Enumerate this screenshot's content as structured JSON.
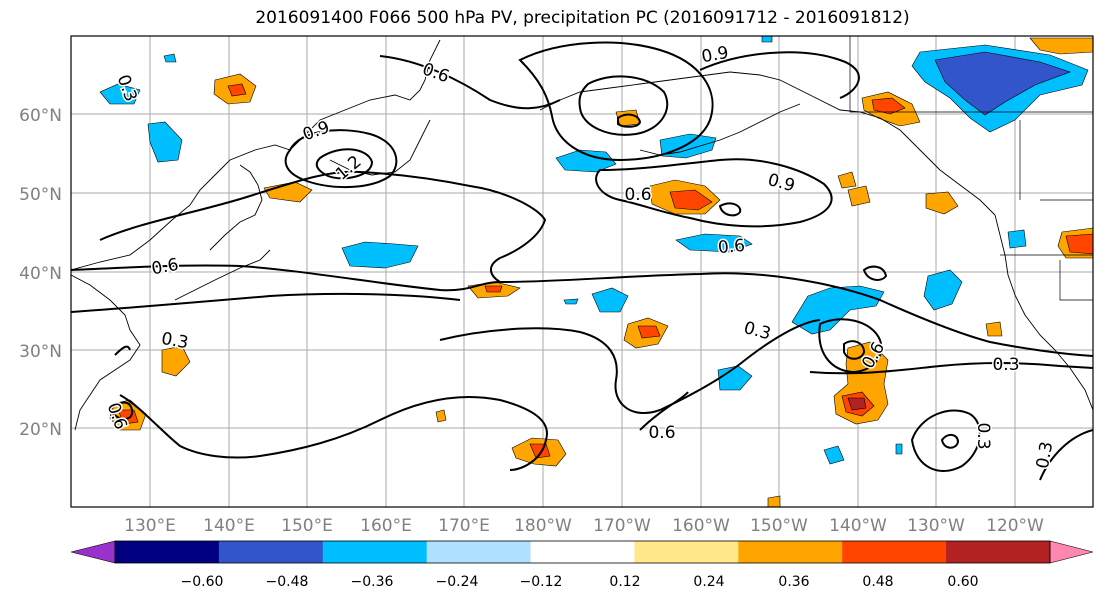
{
  "title": "2016091400 F066 500 hPa PV, precipitation PC (2016091712 - 2016091812)",
  "lat_labels": [
    "20°N",
    "30°N",
    "40°N",
    "50°N",
    "60°N"
  ],
  "lon_labels": [
    "130°E",
    "140°E",
    "150°E",
    "160°E",
    "170°E",
    "180°W",
    "170°W",
    "160°W",
    "150°W",
    "140°W",
    "130°W",
    "120°W"
  ],
  "contour_labels": [
    "0.6",
    "0.9",
    "1.2",
    "0.9",
    "0.9",
    "0.6",
    "0.6",
    "0.6",
    "0.3",
    "0.3",
    "0.6",
    "0.3",
    "0.6",
    "0.3",
    "0.3",
    "0.3",
    "0.6"
  ],
  "colorbar": {
    "ticks": [
      "−0.60",
      "−0.48",
      "−0.36",
      "−0.24",
      "−0.12",
      "0.12",
      "0.24",
      "0.36",
      "0.48",
      "0.60"
    ],
    "colors": [
      "#9932CC",
      "#000080",
      "#3355CC",
      "#00BFFF",
      "#B0E0FF",
      "#FFFFFF",
      "#FFE98A",
      "#FFA500",
      "#FF4500",
      "#B22222",
      "#FF88B0"
    ]
  },
  "colors": {
    "orange": "#FFA500",
    "orange_red": "#FF4500",
    "dark_red": "#B22222",
    "pale_yellow": "#FFE98A",
    "sky_blue": "#00BFFF",
    "light_blue": "#B0E0FF",
    "royal_blue": "#3355CC"
  }
}
